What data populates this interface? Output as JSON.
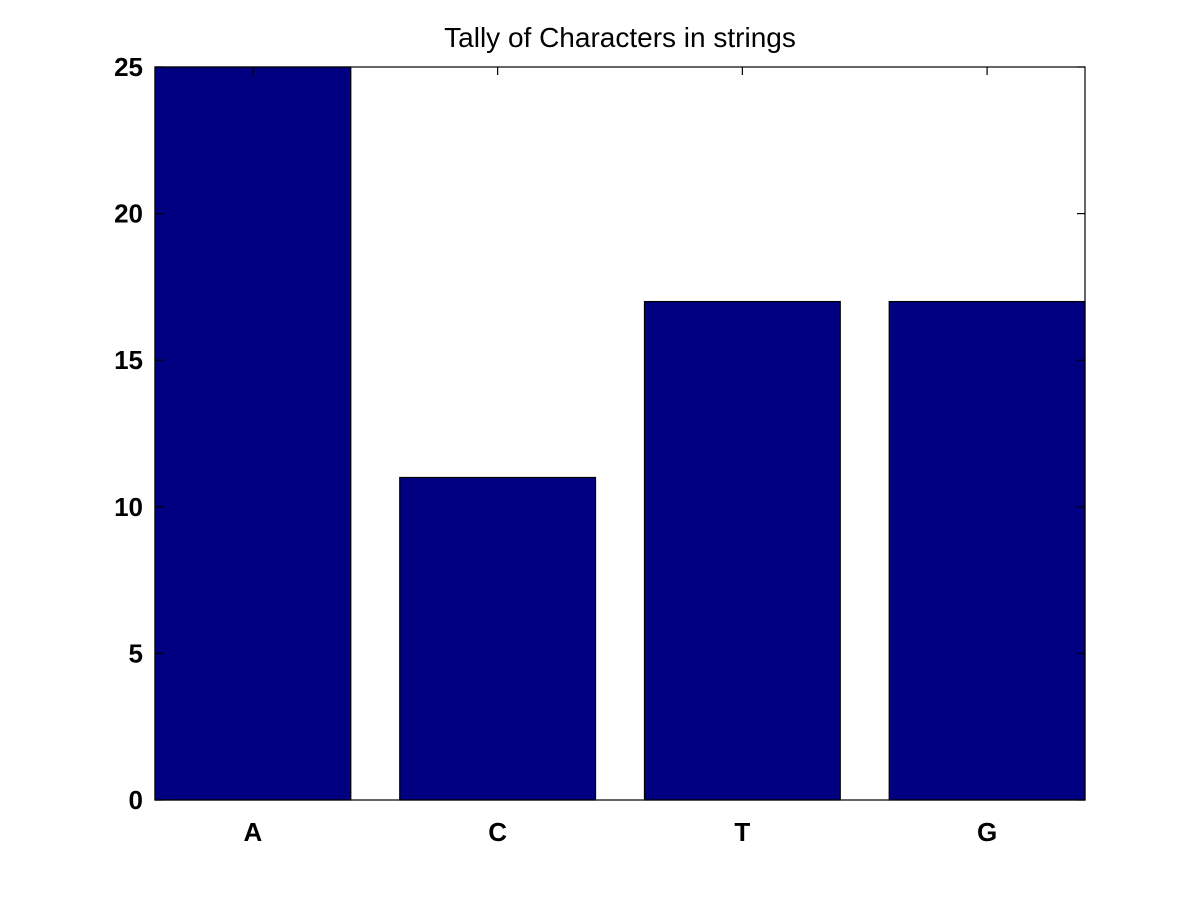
{
  "chart_data": {
    "type": "bar",
    "title": "Tally of Characters in strings",
    "xlabel": "",
    "ylabel": "",
    "categories": [
      "A",
      "C",
      "T",
      "G"
    ],
    "values": [
      25,
      11,
      17,
      17
    ],
    "ylim": [
      0,
      25
    ],
    "yticks": [
      0,
      5,
      10,
      15,
      20,
      25
    ],
    "grid": false,
    "bar_color": "#000080"
  }
}
